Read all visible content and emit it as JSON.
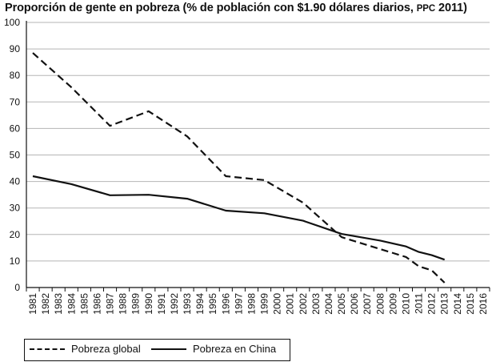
{
  "title": {
    "main": "Proporción de gente en pobreza (% de población con $1.90 dólares diarios,",
    "small": "PPC",
    "end": "2011)"
  },
  "legend": {
    "global_label": "Pobreza global",
    "china_label": "Pobreza en China"
  },
  "colors": {
    "line": "#111111",
    "grid": "#b5b5b5",
    "axis": "#111111"
  },
  "chart_data": {
    "type": "line",
    "title": "Proporción de gente en pobreza (% de población con $1.90 dólares diarios, PPC 2011)",
    "xlabel": "",
    "ylabel": "",
    "ylim": [
      0,
      100
    ],
    "yticks": [
      0,
      10,
      20,
      30,
      40,
      50,
      60,
      70,
      80,
      90,
      100
    ],
    "categories": [
      "1981",
      "1982",
      "1983",
      "1984",
      "1985",
      "1986",
      "1987",
      "1988",
      "1989",
      "1990",
      "1991",
      "1992",
      "1993",
      "1994",
      "1995",
      "1996",
      "1997",
      "1998",
      "1999",
      "2000",
      "2001",
      "2002",
      "2003",
      "2004",
      "2005",
      "2006",
      "2007",
      "2008",
      "2009",
      "2010",
      "2011",
      "2012",
      "2013",
      "2014",
      "2015",
      "2016"
    ],
    "grid": true,
    "legend_position": "bottom-left",
    "series": [
      {
        "name": "Pobreza global",
        "style": "dashed",
        "points": [
          {
            "x": "1981",
            "y": 88.5
          },
          {
            "x": "1984",
            "y": 75.5
          },
          {
            "x": "1987",
            "y": 61
          },
          {
            "x": "1990",
            "y": 66.5
          },
          {
            "x": "1993",
            "y": 57
          },
          {
            "x": "1996",
            "y": 42
          },
          {
            "x": "1999",
            "y": 40.5
          },
          {
            "x": "2002",
            "y": 32
          },
          {
            "x": "2005",
            "y": 19
          },
          {
            "x": "2008",
            "y": 14.5
          },
          {
            "x": "2010",
            "y": 11.5
          },
          {
            "x": "2011",
            "y": 8
          },
          {
            "x": "2012",
            "y": 6.5
          },
          {
            "x": "2013",
            "y": 1.8
          }
        ]
      },
      {
        "name": "Pobreza en China",
        "style": "solid",
        "points": [
          {
            "x": "1981",
            "y": 42
          },
          {
            "x": "1984",
            "y": 39
          },
          {
            "x": "1987",
            "y": 34.8
          },
          {
            "x": "1990",
            "y": 35
          },
          {
            "x": "1993",
            "y": 33.5
          },
          {
            "x": "1996",
            "y": 29
          },
          {
            "x": "1999",
            "y": 28
          },
          {
            "x": "2002",
            "y": 25.2
          },
          {
            "x": "2005",
            "y": 20.2
          },
          {
            "x": "2008",
            "y": 17.7
          },
          {
            "x": "2010",
            "y": 15.5
          },
          {
            "x": "2011",
            "y": 13.4
          },
          {
            "x": "2012",
            "y": 12.2
          },
          {
            "x": "2013",
            "y": 10.5
          }
        ]
      }
    ]
  }
}
